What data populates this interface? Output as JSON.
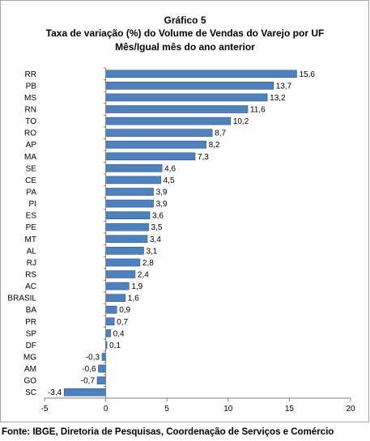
{
  "title": "Gráfico 5",
  "subtitle": "Taxa de variação (%) do Volume de Vendas do Varejo por UF",
  "subtitle2": "Mês/Igual mês do ano anterior",
  "source": "Fonte: IBGE, Diretoria de Pesquisas, Coordenação de Serviços e Comércio",
  "colors": {
    "bar": "#4f81bd",
    "bar_border": "#2f5597",
    "axis": "#808080"
  },
  "chart_data": {
    "type": "bar",
    "orientation": "horizontal",
    "categories": [
      "RR",
      "PB",
      "MS",
      "RN",
      "TO",
      "RO",
      "AP",
      "MA",
      "SE",
      "CE",
      "PA",
      "PI",
      "ES",
      "PE",
      "MT",
      "AL",
      "RJ",
      "RS",
      "AC",
      "BRASIL",
      "BA",
      "PR",
      "SP",
      "DF",
      "MG",
      "AM",
      "GO",
      "SC"
    ],
    "values": [
      15.6,
      13.7,
      13.2,
      11.6,
      10.2,
      8.7,
      8.2,
      7.3,
      4.6,
      4.5,
      3.9,
      3.9,
      3.6,
      3.5,
      3.4,
      3.1,
      2.8,
      2.4,
      1.9,
      1.6,
      0.9,
      0.7,
      0.4,
      0.1,
      -0.3,
      -0.6,
      -0.7,
      -3.4
    ],
    "value_labels": [
      "15,6",
      "13,7",
      "13,2",
      "11,6",
      "10,2",
      "8,7",
      "8,2",
      "7,3",
      "4,6",
      "4,5",
      "3,9",
      "3,9",
      "3,6",
      "3,5",
      "3,4",
      "3,1",
      "2,8",
      "2,4",
      "1,9",
      "1,6",
      "0,9",
      "0,7",
      "0,4",
      "0,1",
      "-0,3",
      "-0,6",
      "-0,7",
      "-3,4"
    ],
    "xlim": [
      -5,
      20
    ],
    "xticks": [
      -5,
      0,
      5,
      10,
      15,
      20
    ],
    "xtick_labels": [
      "-5",
      "0",
      "5",
      "10",
      "15",
      "20"
    ],
    "grid": false,
    "legend": "none"
  }
}
